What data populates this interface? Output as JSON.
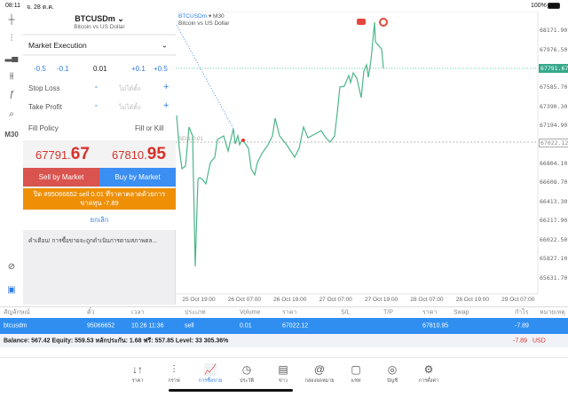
{
  "status": {
    "time": "08:11",
    "date": "จ. 28 ต.ค.",
    "battery": "100%"
  },
  "left_toolbar": {
    "items": [
      "crosshair-icon",
      "candles-icon",
      "indicators-icon",
      "settings-sliders-icon",
      "function-icon",
      "objects-icon"
    ],
    "timeframe": "M30"
  },
  "order": {
    "symbol": "BTCUSDm",
    "symbol_desc": "Bitcoin vs US Dollar",
    "execution": "Market Execution",
    "steps": [
      "-0.5",
      "-0.1",
      "+0.1",
      "+0.5"
    ],
    "volume": "0.01",
    "stop_loss_label": "Stop Loss",
    "take_profit_label": "Take Profit",
    "not_set": "ไม่ได้ตั้ง",
    "minus": "-",
    "plus": "+",
    "fill_policy_label": "Fill Policy",
    "fill_policy_value": "Fill or Kill",
    "bid_main": "67791.",
    "bid_big": "67",
    "ask_main": "67810.",
    "ask_big": "95",
    "sell_btn": "Sell by Market",
    "buy_btn": "Buy by Market",
    "close_msg": "ปิด #95066652 sell 0.01 ที่ราคาตลาดด้วยการขาดทุน -7.89",
    "cancel": "ยกเลิก",
    "warning": "คำเตือน! การซื้อขายจะถูกดำเนินการตามสภาพตล..."
  },
  "chart": {
    "symbol": "BTCUSDm",
    "timeframe": "M30",
    "desc": "Bitcoin vs US Dollar",
    "sell_label": "SELL 0.01",
    "line_color": "#4cb58a",
    "price_labels": [
      "68171.90",
      "67976.50",
      "67585.70",
      "67390.30",
      "67194.90",
      "66804.10",
      "66608.70",
      "66413.30",
      "66217.90",
      "66022.50",
      "65827.10",
      "65631.70"
    ],
    "current_price": "67791.67",
    "order_price": "67022.12",
    "time_labels": [
      "25 Oct 19:00",
      "26 Oct 07:00",
      "26 Oct 19:00",
      "27 Oct 07:00",
      "27 Oct 19:00",
      "28 Oct 07:00",
      "28 Oct 19:00",
      "29 Oct 07:00"
    ]
  },
  "table": {
    "headers": [
      "สัญลักษณ์",
      "ตั๋ว",
      "เวลา",
      "ประเภท",
      "Volume",
      "ราคา",
      "S/L",
      "T/P",
      "ราคา",
      "Swap",
      "กำไร",
      "หมายเหตุ"
    ],
    "row": [
      "btcusdm",
      "95066652",
      "10.26 11:36",
      "sell",
      "0.01",
      "67022.12",
      "",
      "",
      "67810.95",
      "",
      "-7.89",
      ""
    ],
    "balance": "Balance: 567.42 Equity: 559.53 หลักประกัน: 1.68 ฟรี: 557.85 Level: 33 305.36%",
    "profit": "-7.89",
    "currency": "USD"
  },
  "nav": [
    {
      "label": "ราคา",
      "icon": "↓↑"
    },
    {
      "label": "กราฟ",
      "icon": "⫶"
    },
    {
      "label": "การซื้อขาย",
      "icon": "📈"
    },
    {
      "label": "ประวัติ",
      "icon": "◷"
    },
    {
      "label": "ข่าว",
      "icon": "▤"
    },
    {
      "label": "กล่องจดหมาย",
      "icon": "@"
    },
    {
      "label": "แชท",
      "icon": "▢"
    },
    {
      "label": "บัญชี",
      "icon": "◎"
    },
    {
      "label": "การตั้งค่า",
      "icon": "⚙"
    }
  ]
}
